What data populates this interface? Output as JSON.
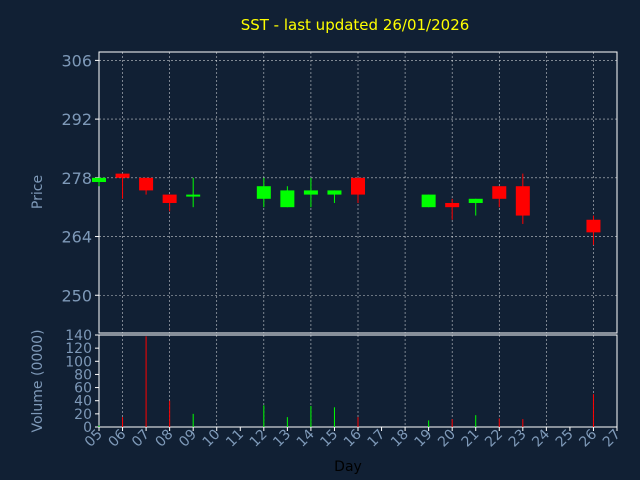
{
  "chart_data": {
    "type": "candlestick",
    "title": "SST - last updated 26/01/2026",
    "xlabel": "Day",
    "price_panel": {
      "ylabel": "Price",
      "ylim": [
        241,
        308
      ],
      "yticks": [
        250,
        264,
        278,
        292,
        306
      ]
    },
    "volume_panel": {
      "ylabel": "Volume (0000)",
      "ylim": [
        0,
        140
      ],
      "yticks": [
        0,
        20,
        40,
        60,
        80,
        100,
        120,
        140
      ]
    },
    "x_ticks": [
      "05",
      "06",
      "07",
      "08",
      "09",
      "10",
      "11",
      "12",
      "13",
      "14",
      "15",
      "16",
      "17",
      "18",
      "19",
      "20",
      "21",
      "22",
      "23",
      "24",
      "25",
      "26",
      "27"
    ],
    "candles": [
      {
        "day": "05",
        "open": 277,
        "high": 278,
        "low": 276,
        "close": 278,
        "volume": 2
      },
      {
        "day": "06",
        "open": 279,
        "high": 279,
        "low": 273,
        "close": 278,
        "volume": 15
      },
      {
        "day": "07",
        "open": 278,
        "high": 278,
        "low": 274,
        "close": 275,
        "volume": 138
      },
      {
        "day": "08",
        "open": 274,
        "high": 274,
        "low": 270,
        "close": 272,
        "volume": 40
      },
      {
        "day": "09",
        "open": 274,
        "high": 278,
        "low": 271,
        "close": 274,
        "volume": 20
      },
      {
        "day": "12",
        "open": 273,
        "high": 278,
        "low": 271,
        "close": 276,
        "volume": 33
      },
      {
        "day": "13",
        "open": 271,
        "high": 276,
        "low": 271,
        "close": 275,
        "volume": 15
      },
      {
        "day": "14",
        "open": 274,
        "high": 278,
        "low": 271,
        "close": 275,
        "volume": 32
      },
      {
        "day": "15",
        "open": 274,
        "high": 275,
        "low": 272,
        "close": 275,
        "volume": 30
      },
      {
        "day": "16",
        "open": 278,
        "high": 278,
        "low": 272,
        "close": 274,
        "volume": 15
      },
      {
        "day": "19",
        "open": 271,
        "high": 274,
        "low": 271,
        "close": 274,
        "volume": 10
      },
      {
        "day": "20",
        "open": 272,
        "high": 273,
        "low": 268,
        "close": 271,
        "volume": 12
      },
      {
        "day": "21",
        "open": 272,
        "high": 273,
        "low": 269,
        "close": 273,
        "volume": 18
      },
      {
        "day": "22",
        "open": 276,
        "high": 276,
        "low": 271,
        "close": 273,
        "volume": 13
      },
      {
        "day": "23",
        "open": 276,
        "high": 279,
        "low": 267,
        "close": 269,
        "volume": 12
      },
      {
        "day": "26",
        "open": 268,
        "high": 269,
        "low": 262,
        "close": 265,
        "volume": 50
      }
    ],
    "colors": {
      "background": "#112034",
      "plot_background": "#112034",
      "frame": "#ffffff",
      "grid": "#ffffff",
      "up": "#00ff00",
      "down": "#ff0000",
      "title": "#ffff00",
      "axis_text": "#7e99b8",
      "xlabel": "#000000"
    },
    "grid": true
  }
}
